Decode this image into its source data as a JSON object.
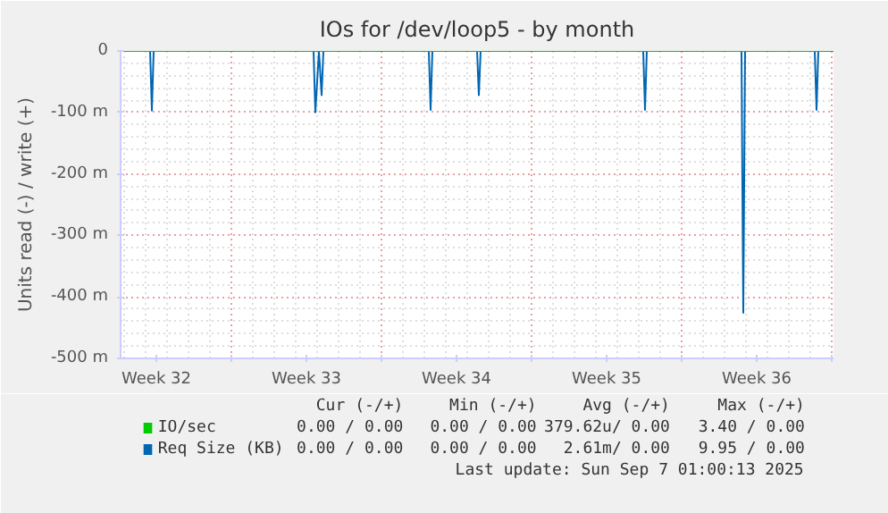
{
  "chart_data": {
    "type": "line",
    "title": "IOs for /dev/loop5 - by month",
    "ylabel": "Units read (-) / write (+)",
    "xlim": [
      "2025-08-04T20:00",
      "2025-09-07T02:00"
    ],
    "ylim": [
      -500,
      0
    ],
    "xticks": [
      {
        "value": "2025-08-06T12:00",
        "label": "Week 32"
      },
      {
        "value": "2025-08-13T12:00",
        "label": "Week 33"
      },
      {
        "value": "2025-08-20T12:00",
        "label": "Week 34"
      },
      {
        "value": "2025-08-27T12:00",
        "label": "Week 35"
      },
      {
        "value": "2025-09-03T12:00",
        "label": "Week 36"
      },
      {
        "value": "2025-08-10",
        "label": null
      },
      {
        "value": "2025-08-17",
        "label": null
      },
      {
        "value": "2025-08-24",
        "label": null
      },
      {
        "value": "2025-08-31",
        "label": null
      },
      {
        "value": "2025-09-07",
        "label": null
      }
    ],
    "yticks": [
      0,
      {
        "value": -100,
        "label": "-100 m"
      },
      {
        "value": -200,
        "label": "-200 m"
      },
      {
        "value": -300,
        "label": "-300 m"
      },
      {
        "value": -400,
        "label": "-400 m"
      },
      {
        "value": -500,
        "label": "-500 m"
      }
    ],
    "grid": true,
    "legend": "bottom",
    "marker": "none",
    "line_style": "solid",
    "series": [
      {
        "name": "IO/sec",
        "color": "#00cc00",
        "x": [
          "2025-08-04T20:00",
          "2025-09-07T02:00"
        ],
        "values": [
          0,
          0
        ]
      },
      {
        "name": "Req Size (KB)",
        "color": "#0066b3",
        "x": [
          "2025-08-04T20:00",
          "2025-08-06T05:00",
          "2025-08-06T07:00",
          "2025-08-06T09:00",
          "2025-08-13T20:00",
          "2025-08-13T22:00",
          "2025-08-14T02:00",
          "2025-08-14T05:00",
          "2025-08-14T07:00",
          "2025-08-19T05:00",
          "2025-08-19T07:00",
          "2025-08-19T09:00",
          "2025-08-21T11:00",
          "2025-08-21T13:00",
          "2025-08-21T15:00",
          "2025-08-29T05:00",
          "2025-08-29T07:00",
          "2025-08-29T09:00",
          "2025-09-02T19:00",
          "2025-09-02T21:00",
          "2025-09-02T23:00",
          "2025-09-06T05:00",
          "2025-09-06T07:00",
          "2025-09-06T09:00",
          "2025-09-07T02:00"
        ],
        "values": [
          0,
          0,
          -97,
          0,
          0,
          -100,
          0,
          -72,
          0,
          0,
          -96,
          0,
          0,
          -72,
          0,
          0,
          -96,
          0,
          0,
          -426,
          0,
          0,
          -96,
          0,
          0
        ]
      }
    ],
    "annotations": [
      "Cur (-/+)",
      "Min (-/+)",
      "Avg (-/+)",
      "Max (-/+)",
      "0.00 / 0.00",
      "0.00 / 0.00",
      "379.62u/ 0.00",
      "3.40 / 0.00",
      "0.00 / 0.00",
      "0.00 / 0.00",
      "2.61m/ 0.00",
      "9.95 / 0.00",
      "Last update: Sun Sep  7 01:00:13 2025"
    ]
  }
}
